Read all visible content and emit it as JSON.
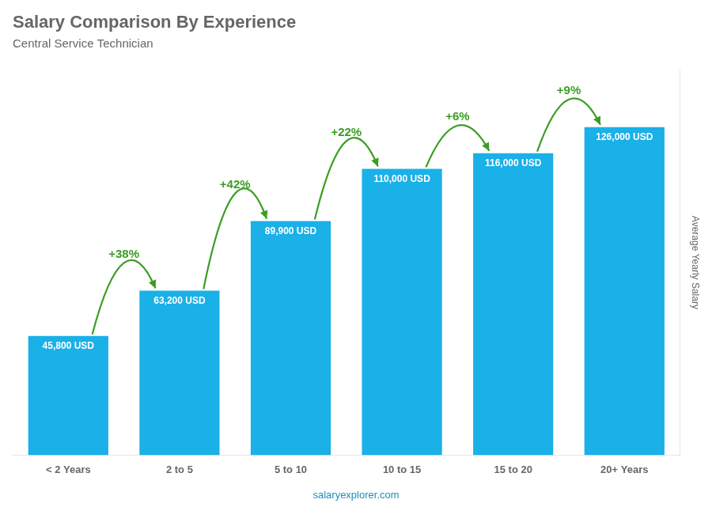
{
  "chart_data": {
    "type": "bar",
    "title": "Salary Comparison By Experience",
    "subtitle": "Central Service Technician",
    "categories": [
      "< 2 Years",
      "2 to 5",
      "5 to 10",
      "10 to 15",
      "15 to 20",
      "20+ Years"
    ],
    "values": [
      45800,
      63200,
      89900,
      110000,
      116000,
      126000
    ],
    "value_labels": [
      "45,800 USD",
      "63,200 USD",
      "89,900 USD",
      "110,000 USD",
      "116,000 USD",
      "126,000 USD"
    ],
    "data_labels": true,
    "color": "#1ab0e8",
    "ylabel": "Average Yearly Salary",
    "ylim": [
      0,
      148000
    ],
    "tick_labels": "x",
    "grid": false,
    "annotations": [
      "+38%",
      "+42%",
      "+22%",
      "+6%",
      "+9%"
    ],
    "footer": "salaryexplorer.com"
  }
}
